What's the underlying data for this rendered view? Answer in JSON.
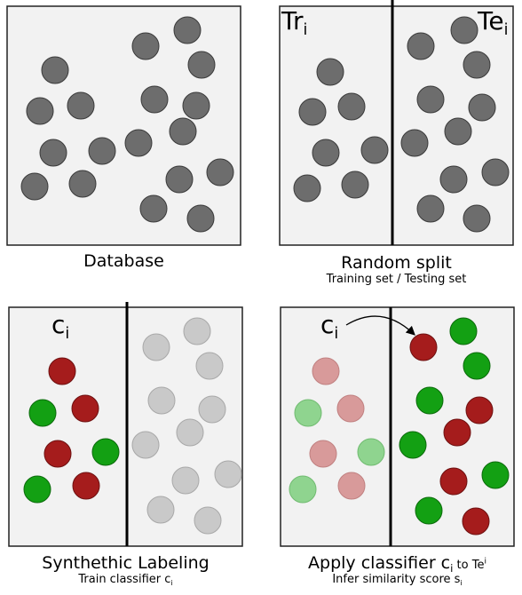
{
  "panels": {
    "database": {
      "caption": "Database"
    },
    "random_split": {
      "caption": "Random split",
      "subcaption": "Training set / Testing set",
      "train_label": {
        "base": "Tr",
        "sub": "i"
      },
      "test_label": {
        "base": "Te",
        "sub": "i"
      }
    },
    "synthetic_labeling": {
      "caption": "Synthethic Labeling",
      "subcaption": {
        "text": "Train classifier c",
        "sub": "i"
      },
      "classifier_label": {
        "base": "c",
        "sub": "i"
      }
    },
    "apply_classifier": {
      "caption": {
        "text": "Apply classifier c",
        "sub": "i",
        "mid": " to Te",
        "sup": "i"
      },
      "subcaption": {
        "text": "Infer similarity score s",
        "sub": "i"
      },
      "classifier_label": {
        "base": "c",
        "sub": "i"
      }
    }
  },
  "colors": {
    "panel_fill": "#f2f2f2",
    "panel_stroke": "#222222",
    "sample_gray": "#6d6d6d",
    "sample_light_gray": "#c9c9c9",
    "label_red": "#a51c1c",
    "label_green": "#13a013",
    "faded_red": "#d89a9a",
    "faded_green": "#8fd48f"
  }
}
